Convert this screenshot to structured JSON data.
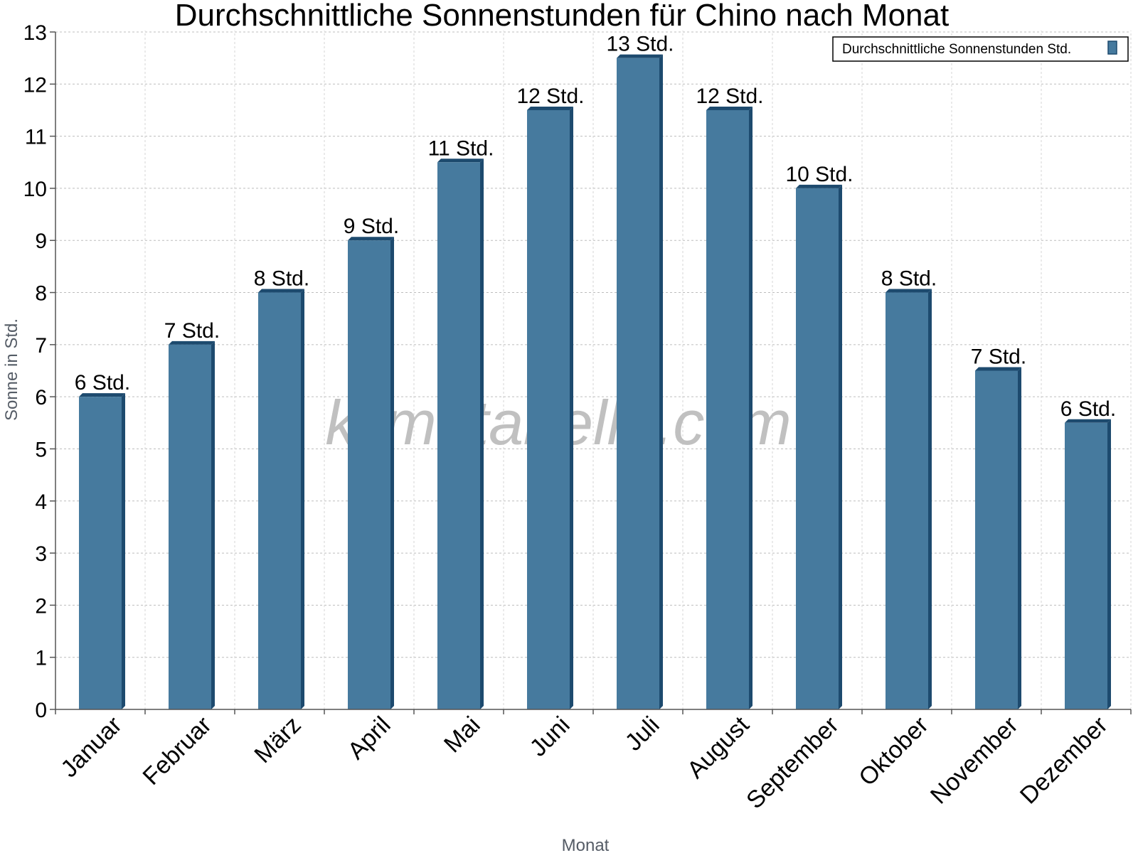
{
  "chart_data": {
    "type": "bar",
    "title": "Durchschnittliche Sonnenstunden für Chino nach Monat",
    "xlabel": "Monat",
    "ylabel": "Sonne in Std.",
    "ylim": [
      0,
      13
    ],
    "yticks": [
      "0",
      "1",
      "2",
      "3",
      "4",
      "5",
      "6",
      "7",
      "8",
      "9",
      "10",
      "11",
      "12",
      "13"
    ],
    "grid": true,
    "legend_position": "top-right",
    "categories": [
      "Januar",
      "Februar",
      "März",
      "April",
      "Mai",
      "Juni",
      "Juli",
      "August",
      "September",
      "Oktober",
      "November",
      "Dezember"
    ],
    "series": [
      {
        "name": "Durchschnittliche Sonnenstunden Std.",
        "values": [
          6,
          7,
          8,
          9,
          10.5,
          11.5,
          12.5,
          11.5,
          10,
          8,
          6.5,
          5.5
        ],
        "labels": [
          "6 Std.",
          "7 Std.",
          "8 Std.",
          "9 Std.",
          "11 Std.",
          "12 Std.",
          "13 Std.",
          "12 Std.",
          "10 Std.",
          "8 Std.",
          "7 Std.",
          "6 Std."
        ],
        "color": "#467a9e",
        "side_color": "#1d4a6e"
      }
    ],
    "watermark": "klimatabelle.com"
  }
}
